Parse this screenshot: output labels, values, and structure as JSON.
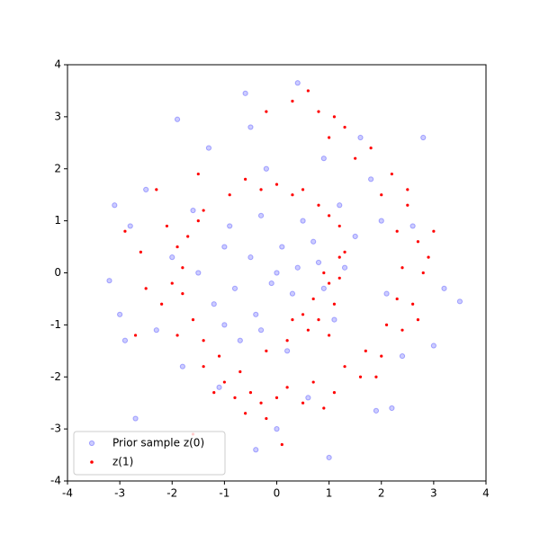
{
  "chart_data": {
    "type": "scatter",
    "xlim": [
      -4,
      4
    ],
    "ylim": [
      -4,
      4
    ],
    "xticks": [
      -4,
      -3,
      -2,
      -1,
      0,
      1,
      2,
      3,
      4
    ],
    "yticks": [
      -4,
      -3,
      -2,
      -1,
      0,
      1,
      2,
      3,
      4
    ],
    "legend": "lower left",
    "series": [
      {
        "name": "Prior sample z(0)",
        "color": "#0000ff",
        "x": [
          0,
          -0.5,
          0.3,
          -1,
          0.8,
          -0.3,
          0.5,
          -1.2,
          1.1,
          -0.7,
          0.2,
          1.5,
          -1.6,
          -2,
          2.1,
          -0.2,
          0.9,
          -1.3,
          1.8,
          -2.3,
          2.4,
          -1.1,
          0.6,
          -2.8,
          -3.1,
          3.5,
          -3.2,
          0.4,
          -0.6,
          2.8,
          1.9,
          -2.7,
          1.0,
          -0.4,
          3.0,
          -1.9,
          -0.9,
          0.7,
          -0.4,
          1.3,
          -1.5,
          0.1,
          -0.1,
          0.4,
          -0.8,
          -1.0,
          1.2,
          -2.5,
          2.6,
          -1.8,
          3.2,
          -2.9,
          2.2,
          0.0,
          -0.5,
          1.6,
          -3.0,
          2.0,
          -0.3,
          0.9
        ],
        "values": [
          0,
          0.3,
          -0.4,
          0.5,
          0.2,
          1.1,
          1.0,
          -0.6,
          -0.9,
          -1.3,
          -1.5,
          0.7,
          1.2,
          0.3,
          -0.4,
          2.0,
          2.2,
          2.4,
          1.8,
          -1.1,
          -1.6,
          -2.2,
          -2.4,
          0.9,
          1.3,
          -0.55,
          -0.15,
          3.65,
          3.45,
          2.6,
          -2.65,
          -2.8,
          -3.55,
          -3.4,
          -1.4,
          2.95,
          0.9,
          0.6,
          -0.8,
          0.1,
          0.0,
          0.5,
          -0.2,
          0.1,
          -0.3,
          -1.0,
          1.3,
          1.6,
          0.9,
          -1.8,
          -0.3,
          -1.3,
          -2.6,
          -3.0,
          2.8,
          2.6,
          -0.8,
          1.0,
          -1.1,
          -0.3
        ]
      },
      {
        "name": "z(1)",
        "color": "#ff0000",
        "x": [
          0.3,
          0.8,
          1.3,
          1.8,
          2.2,
          2.5,
          2.7,
          2.8,
          2.6,
          2.4,
          2.0,
          1.6,
          1.1,
          0.5,
          0.0,
          -0.5,
          -1.0,
          -1.4,
          -0.2,
          1.0,
          1.5,
          2.0,
          2.3,
          2.4,
          2.3,
          2.1,
          1.7,
          1.3,
          0.7,
          0.2,
          -0.3,
          -0.8,
          1.1,
          2.5,
          2.9,
          2.7,
          1.9,
          0.9,
          -0.2,
          0.6,
          -0.6,
          -0.3,
          0.3,
          0.8,
          1.2,
          1.3,
          1.2,
          -0.9,
          -1.4,
          -1.7,
          -1.8,
          -1.8,
          -1.6,
          -1.4,
          -1.1,
          -0.7,
          -1.9,
          -2.0,
          -1.5,
          -0.6,
          0.0,
          0.5,
          1.0,
          -2.1,
          -2.2,
          -1.9,
          0.5,
          0.8,
          1.1,
          1.0,
          0.7,
          0.3,
          1.2,
          0.9,
          0.2,
          0.6,
          1.0,
          -0.2,
          -2.5,
          -2.6,
          -2.3,
          -2.7,
          -2.9,
          3.0,
          -1.5,
          -1.2,
          0.1,
          -1.6
        ],
        "values": [
          3.3,
          3.1,
          2.8,
          2.4,
          1.9,
          1.3,
          0.6,
          0.0,
          -0.6,
          -1.1,
          -1.6,
          -2.0,
          -2.3,
          -2.5,
          -2.4,
          -2.3,
          -2.1,
          -1.8,
          3.1,
          2.6,
          2.2,
          1.5,
          0.8,
          0.1,
          -0.5,
          -1.0,
          -1.5,
          -1.8,
          -2.1,
          -2.2,
          -2.5,
          -2.4,
          3.0,
          1.6,
          0.3,
          -0.9,
          -2.0,
          -2.6,
          -2.8,
          3.5,
          -2.7,
          1.6,
          1.5,
          1.3,
          0.9,
          0.4,
          -0.1,
          1.5,
          1.2,
          0.7,
          0.1,
          -0.4,
          -0.9,
          -1.3,
          -1.6,
          -1.9,
          0.5,
          -0.2,
          1.0,
          1.8,
          1.7,
          1.6,
          1.1,
          0.9,
          -0.6,
          -1.2,
          -0.8,
          -0.9,
          -0.6,
          -0.2,
          -0.5,
          -0.9,
          0.3,
          0.0,
          -1.3,
          -1.1,
          -1.2,
          -1.5,
          -0.3,
          0.4,
          1.6,
          -1.2,
          0.8,
          0.8,
          1.9,
          -2.3,
          -3.3,
          -3.1
        ]
      }
    ]
  }
}
